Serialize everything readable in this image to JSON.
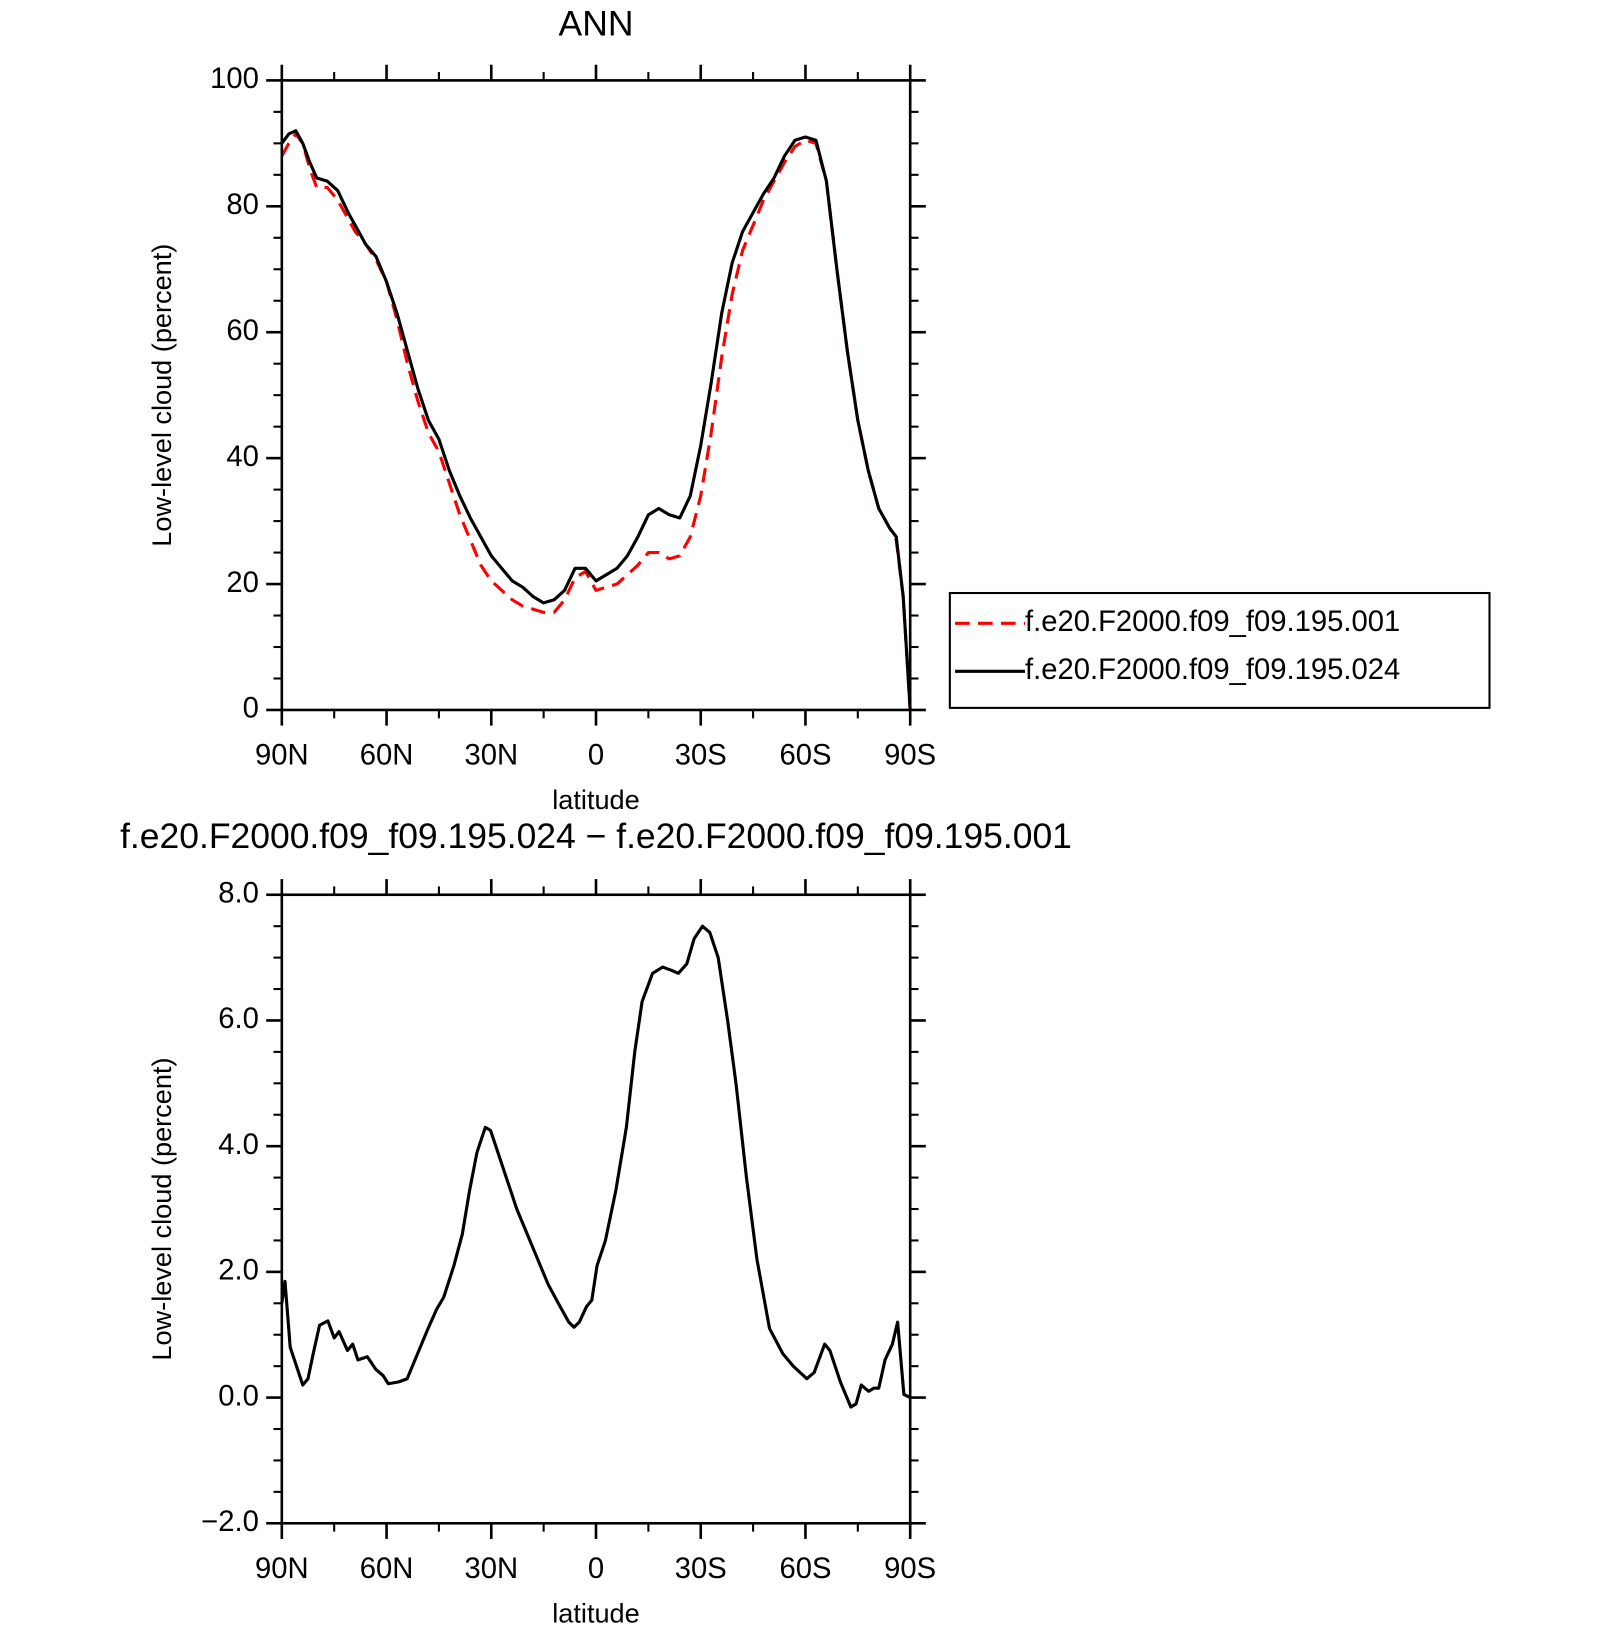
{
  "chart_data": [
    {
      "type": "line",
      "title": "ANN",
      "xlabel": "latitude",
      "ylabel": "Low-level cloud (percent)",
      "xlim": [
        90,
        -90
      ],
      "xticks": [
        {
          "value": 90,
          "label": "90N"
        },
        {
          "value": 60,
          "label": "60N"
        },
        {
          "value": 30,
          "label": "30N"
        },
        0,
        {
          "value": -30,
          "label": "30S"
        },
        {
          "value": -60,
          "label": "60S"
        },
        {
          "value": -90,
          "label": "90S"
        }
      ],
      "ylim": [
        0,
        100
      ],
      "yticks": [
        0,
        20,
        40,
        60,
        80,
        100
      ],
      "legend": "outside right",
      "x": [
        90,
        88,
        86,
        84,
        82,
        80,
        77,
        74,
        71,
        69,
        66,
        63,
        60,
        57,
        54,
        51,
        48,
        45,
        42,
        39,
        36,
        33,
        30,
        27,
        24,
        21,
        18,
        15,
        12,
        9,
        6,
        3,
        0,
        -3,
        -6,
        -9,
        -12,
        -15,
        -18,
        -21,
        -24,
        -27,
        -30,
        -33,
        -36,
        -39,
        -42,
        -45,
        -48,
        -51,
        -54,
        -57,
        -60,
        -63,
        -66,
        -69,
        -72,
        -75,
        -78,
        -81,
        -84,
        -86,
        -88,
        -90
      ],
      "series": [
        {
          "name": "f.e20.F2000.f09_f09.195.001",
          "color": "#ff0000",
          "dash": "dashed",
          "values": [
            88,
            90,
            91.5,
            90,
            86,
            83,
            83,
            81,
            78,
            76,
            74,
            71.5,
            68,
            62,
            55,
            49,
            44,
            41,
            36,
            31,
            27,
            23,
            20.5,
            19,
            17.5,
            16.5,
            16,
            15.5,
            15.5,
            17.5,
            21,
            22,
            19,
            19.5,
            20,
            21.5,
            23,
            25,
            25,
            24,
            24.5,
            27.5,
            34,
            44,
            56,
            66,
            73,
            77,
            81,
            84,
            87,
            89.5,
            90.5,
            90,
            84,
            70,
            57,
            46,
            38,
            32,
            29,
            27,
            18,
            0
          ]
        },
        {
          "name": "f.e20.F2000.f09_f09.195.024",
          "color": "#000000",
          "dash": "solid",
          "values": [
            90,
            91.5,
            92,
            90,
            87,
            84.5,
            84,
            82.5,
            79,
            77,
            74,
            72,
            68,
            63,
            57,
            51,
            46,
            43,
            38,
            34,
            30.5,
            27.5,
            24.5,
            22.5,
            20.5,
            19.5,
            18,
            17,
            17.5,
            19,
            22.5,
            22.5,
            20.5,
            21.5,
            22.5,
            24.5,
            27.5,
            31,
            32,
            31,
            30.5,
            34,
            42,
            52,
            63,
            71,
            76,
            79,
            82,
            84.5,
            88,
            90.5,
            91,
            90.5,
            84,
            70,
            57,
            46,
            38,
            32,
            29,
            27.5,
            18,
            0
          ]
        }
      ]
    },
    {
      "type": "line",
      "title": "f.e20.F2000.f09_f09.195.024 − f.e20.F2000.f09_f09.195.001",
      "xlabel": "latitude",
      "ylabel": "Low-level cloud (percent)",
      "xlim": [
        90,
        -90
      ],
      "xticks": [
        {
          "value": 90,
          "label": "90N"
        },
        {
          "value": 60,
          "label": "60N"
        },
        {
          "value": 30,
          "label": "30N"
        },
        0,
        {
          "value": -30,
          "label": "30S"
        },
        {
          "value": -60,
          "label": "60S"
        },
        {
          "value": -90,
          "label": "90S"
        }
      ],
      "ylim": [
        -2,
        8
      ],
      "yticks": [
        {
          "value": -2,
          "label": "−2.0"
        },
        {
          "value": 0,
          "label": "0.0"
        },
        {
          "value": 2,
          "label": "2.0"
        },
        {
          "value": 4,
          "label": "4.0"
        },
        {
          "value": 6,
          "label": "6.0"
        },
        {
          "value": 8,
          "label": "8.0"
        }
      ],
      "color": "#000000",
      "x": [
        90,
        89.1,
        87.6,
        85.5,
        84,
        82.5,
        81,
        79.2,
        76.8,
        75,
        73.6,
        71.2,
        69.7,
        68.2,
        65.5,
        63.1,
        61,
        59.5,
        56.5,
        54.1,
        51.1,
        48.1,
        45.7,
        43.6,
        40.7,
        38.3,
        36.2,
        34.1,
        31.7,
        30.2,
        28.7,
        25.7,
        22.7,
        19.7,
        16.7,
        13.7,
        10.8,
        7.8,
        6.3,
        4.8,
        2.7,
        1.2,
        -0.3,
        -2.7,
        -5.7,
        -8.7,
        -11.1,
        -13.2,
        -16.2,
        -19.1,
        -21.5,
        -23.6,
        -26,
        -28.1,
        -30.5,
        -32.6,
        -35,
        -37.7,
        -40.1,
        -43.1,
        -46.1,
        -49.7,
        -53.5,
        -56.5,
        -60.4,
        -62.5,
        -65.5,
        -67,
        -70,
        -73,
        -74.5,
        -76,
        -78.1,
        -79.6,
        -81,
        -82.8,
        -84.9,
        -86.4,
        -88.2,
        -90
      ],
      "values": [
        1.5,
        1.85,
        0.8,
        0.45,
        0.2,
        0.3,
        0.7,
        1.15,
        1.22,
        0.95,
        1.05,
        0.75,
        0.85,
        0.6,
        0.65,
        0.45,
        0.35,
        0.22,
        0.25,
        0.3,
        0.7,
        1.1,
        1.4,
        1.6,
        2.1,
        2.6,
        3.3,
        3.9,
        4.3,
        4.25,
        4.0,
        3.5,
        3.0,
        2.6,
        2.2,
        1.8,
        1.5,
        1.2,
        1.12,
        1.2,
        1.45,
        1.55,
        2.1,
        2.5,
        3.3,
        4.3,
        5.5,
        6.3,
        6.75,
        6.85,
        6.8,
        6.75,
        6.9,
        7.3,
        7.5,
        7.4,
        7.0,
        6.0,
        5.0,
        3.5,
        2.2,
        1.1,
        0.7,
        0.5,
        0.3,
        0.4,
        0.85,
        0.75,
        0.25,
        -0.15,
        -0.1,
        0.2,
        0.1,
        0.15,
        0.15,
        0.6,
        0.85,
        1.2,
        0.05,
        0.0
      ]
    }
  ]
}
